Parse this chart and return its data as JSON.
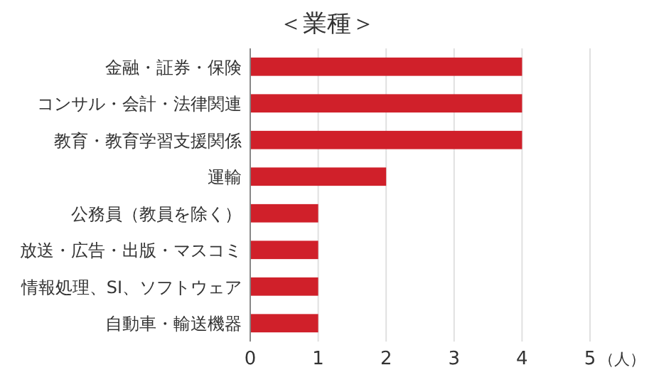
{
  "chart_data": {
    "type": "bar",
    "orientation": "horizontal",
    "title": "＜業種＞",
    "xlabel": "（人）",
    "categories": [
      "金融・証券・保険",
      "コンサル・会計・法律関連",
      "教育・教育学習支援関係",
      "運輸",
      "公務員（教員を除く）",
      "放送・広告・出版・マスコミ",
      "情報処理、SI、ソフトウェア",
      "自動車・輸送機器"
    ],
    "values": [
      4,
      4,
      4,
      2,
      1,
      1,
      1,
      1
    ],
    "color": "#d0202a",
    "xlim": [
      0,
      5
    ],
    "xticks": [
      0,
      1,
      2,
      3,
      4,
      5
    ],
    "grid": "x"
  }
}
